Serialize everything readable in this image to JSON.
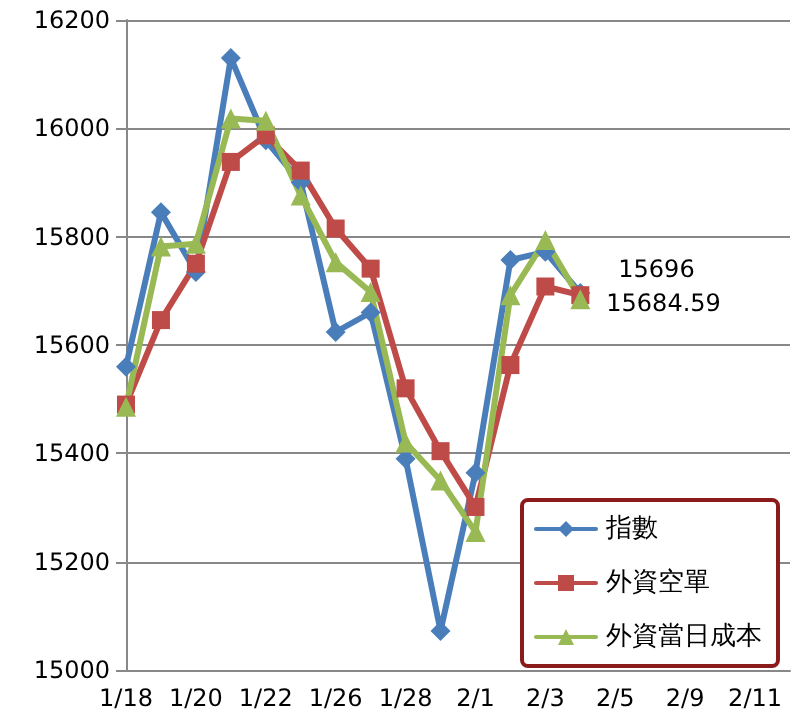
{
  "chart_data": {
    "type": "line",
    "categories": [
      "1/18",
      null,
      "1/20",
      null,
      "1/22",
      null,
      "1/26",
      null,
      "1/28",
      null,
      "2/1",
      null,
      "2/3",
      null,
      "2/5",
      null,
      "2/9",
      null,
      "2/11",
      null
    ],
    "series": [
      {
        "name": "指數",
        "color": "#4a7ebb",
        "marker": "diamond",
        "values": [
          15560,
          15845,
          15735,
          16130,
          15978,
          15900,
          15624,
          15660,
          15390,
          15072,
          15364,
          15757,
          15772,
          15696,
          null,
          null,
          null,
          null,
          null,
          null
        ],
        "value_labels": [
          null,
          null,
          null,
          null,
          null,
          null,
          null,
          null,
          null,
          null,
          null,
          null,
          null,
          "15696",
          null,
          null,
          null,
          null,
          null,
          null
        ]
      },
      {
        "name": "外資空單",
        "color": "#be4b48",
        "marker": "square",
        "values": [
          15490,
          15646,
          15750,
          15938,
          15987,
          15922,
          15815,
          15741,
          15520,
          15404,
          15301,
          15563,
          15708,
          15692,
          null,
          null,
          null,
          null,
          null,
          null
        ]
      },
      {
        "name": "外資當日成本",
        "color": "#98b954",
        "marker": "triangle",
        "values": [
          15486,
          15782,
          15787,
          16018,
          16014,
          15876,
          15753,
          15698,
          15420,
          15350,
          15255,
          15692,
          15794,
          15684.59,
          null,
          null,
          null,
          null,
          null,
          null
        ],
        "value_labels": [
          null,
          null,
          null,
          null,
          null,
          null,
          null,
          null,
          null,
          null,
          null,
          null,
          null,
          "15684.59",
          null,
          null,
          null,
          null,
          null,
          null
        ]
      }
    ],
    "ylim": [
      15000,
      16200
    ],
    "yticks": [
      15000,
      15200,
      15400,
      15600,
      15800,
      16000,
      16200
    ],
    "grid": "y",
    "legend": "bottom right"
  }
}
